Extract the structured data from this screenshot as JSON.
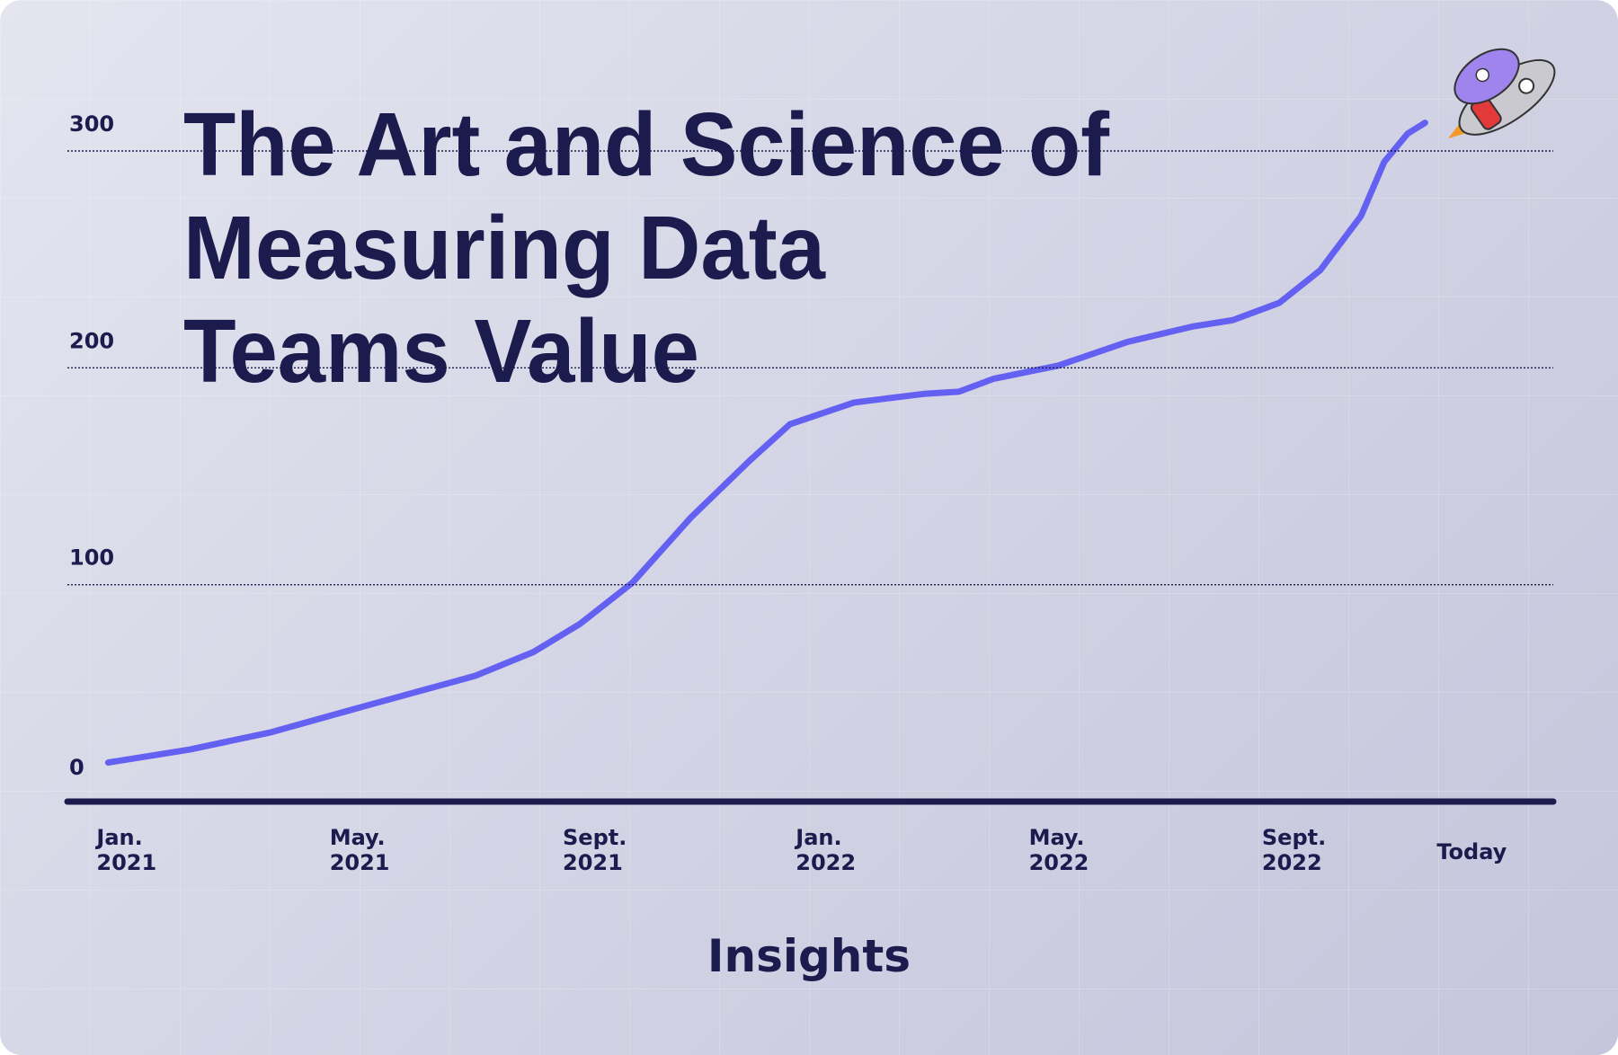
{
  "chart_data": {
    "type": "line",
    "title": [
      "The Art and Science of",
      "Measuring Data",
      "Teams Value"
    ],
    "footer": "Insights",
    "x": [
      0.2,
      1.6,
      3.0,
      4.6,
      6.5,
      7.5,
      8.3,
      9.2,
      10.2,
      11.2,
      11.9,
      13.0,
      14.2,
      14.8,
      15.4,
      16.5,
      17.7,
      18.8,
      19.5,
      20.3,
      21.0,
      21.7,
      22.1,
      22.5,
      22.8
    ],
    "series": [
      {
        "color": "#6461f2",
        "values": [
          18,
          24,
          32,
          44,
          58,
          69,
          82,
          101,
          131,
          157,
          174,
          184,
          188,
          189,
          195,
          201,
          212,
          219,
          222,
          230,
          245,
          270,
          295,
          308,
          313
        ]
      }
    ],
    "xlim": [
      -0.5,
      25
    ],
    "xticks": [
      {
        "value": 0,
        "label": "Jan. 2021"
      },
      {
        "value": 4,
        "label": "May. 2021"
      },
      {
        "value": 8,
        "label": "Sept. 2021"
      },
      {
        "value": 12,
        "label": "Jan. 2022"
      },
      {
        "value": 16,
        "label": "May. 2022"
      },
      {
        "value": 20,
        "label": "Sept. 2022"
      },
      {
        "value": 23,
        "label": "Today"
      }
    ],
    "ylim": [
      0,
      300
    ],
    "yticks": [
      0,
      100,
      200,
      300
    ],
    "grid": true
  }
}
